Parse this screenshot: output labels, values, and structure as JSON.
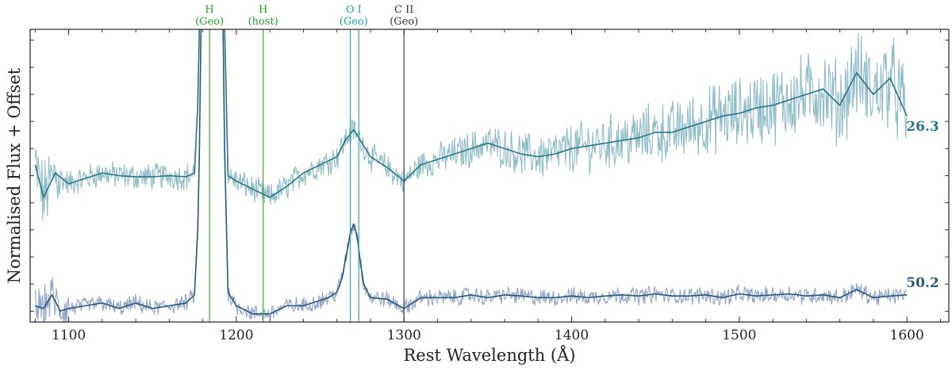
{
  "chart_data": {
    "type": "line",
    "title": "",
    "xlabel": "Rest Wavelength (Å)",
    "ylabel": "Normalised Flux + Offset",
    "xlim": [
      1077,
      1625
    ],
    "ylim": [
      -0.2,
      5.2
    ],
    "xticks": [
      1100,
      1200,
      1300,
      1400,
      1500,
      1600
    ],
    "grid": false,
    "colors": {
      "upper_raw": "#8fbcc7",
      "upper_smooth": "#2a7587",
      "lower_raw": "#93a5c8",
      "lower_smooth": "#2a577a",
      "green": "#2ca02c",
      "teal": "#1ca5a5",
      "black": "#333333"
    },
    "series": [
      {
        "name": "26.3",
        "label_color": "#2a7587",
        "offset": 1.8,
        "smooth": {
          "x": [
            1080,
            1085,
            1092,
            1100,
            1110,
            1120,
            1130,
            1140,
            1150,
            1160,
            1170,
            1175,
            1177,
            1178,
            1179,
            1180,
            1181,
            1182,
            1183,
            1185,
            1188,
            1190,
            1191,
            1192,
            1193,
            1195,
            1200,
            1210,
            1220,
            1230,
            1240,
            1250,
            1260,
            1265,
            1270,
            1275,
            1280,
            1290,
            1300,
            1310,
            1320,
            1330,
            1340,
            1350,
            1360,
            1370,
            1380,
            1390,
            1400,
            1410,
            1420,
            1430,
            1440,
            1450,
            1460,
            1470,
            1480,
            1490,
            1500,
            1510,
            1520,
            1530,
            1540,
            1550,
            1560,
            1570,
            1580,
            1590,
            1600
          ],
          "y": [
            0.9,
            0.3,
            0.75,
            0.55,
            0.65,
            0.75,
            0.7,
            0.68,
            0.68,
            0.7,
            0.68,
            0.75,
            2.0,
            3.5,
            5.4,
            5.4,
            5.4,
            5.4,
            5.4,
            5.4,
            5.4,
            5.4,
            5.4,
            5.4,
            3.5,
            0.7,
            0.6,
            0.45,
            0.3,
            0.5,
            0.75,
            0.9,
            1.05,
            1.35,
            1.55,
            1.3,
            1.05,
            0.85,
            0.6,
            0.9,
            1.0,
            1.1,
            1.2,
            1.3,
            1.2,
            1.1,
            1.05,
            1.1,
            1.2,
            1.25,
            1.3,
            1.35,
            1.4,
            1.5,
            1.5,
            1.6,
            1.7,
            1.8,
            1.85,
            1.95,
            2.0,
            2.1,
            2.2,
            2.3,
            2.0,
            2.6,
            2.2,
            2.5,
            1.8
          ]
        }
      },
      {
        "name": "50.2",
        "label_color": "#2a577a",
        "offset": 0,
        "smooth": {
          "x": [
            1080,
            1085,
            1090,
            1095,
            1100,
            1110,
            1120,
            1130,
            1140,
            1150,
            1160,
            1170,
            1175,
            1177,
            1178,
            1179,
            1180,
            1181,
            1182,
            1183,
            1185,
            1188,
            1190,
            1191,
            1192,
            1193,
            1195,
            1200,
            1210,
            1220,
            1230,
            1240,
            1250,
            1255,
            1260,
            1263,
            1266,
            1268,
            1270,
            1272,
            1274,
            1276,
            1280,
            1290,
            1300,
            1310,
            1320,
            1330,
            1340,
            1350,
            1360,
            1370,
            1380,
            1390,
            1400,
            1410,
            1420,
            1430,
            1440,
            1450,
            1460,
            1470,
            1480,
            1490,
            1500,
            1510,
            1520,
            1530,
            1540,
            1550,
            1560,
            1570,
            1580,
            1590,
            1600
          ],
          "y": [
            0.1,
            0.05,
            0.3,
            0.0,
            0.05,
            0.1,
            0.15,
            0.05,
            0.15,
            0.05,
            0.1,
            0.15,
            0.3,
            1.5,
            3.0,
            5.4,
            5.4,
            5.4,
            5.4,
            5.4,
            5.4,
            5.4,
            5.4,
            5.4,
            5.4,
            3.0,
            0.35,
            0.1,
            -0.05,
            -0.05,
            0.1,
            0.1,
            0.2,
            0.25,
            0.35,
            0.6,
            1.1,
            1.45,
            1.6,
            1.4,
            0.9,
            0.5,
            0.25,
            0.22,
            0.05,
            0.25,
            0.25,
            0.25,
            0.3,
            0.25,
            0.3,
            0.28,
            0.25,
            0.25,
            0.28,
            0.25,
            0.28,
            0.3,
            0.28,
            0.32,
            0.28,
            0.28,
            0.3,
            0.25,
            0.32,
            0.28,
            0.3,
            0.32,
            0.28,
            0.3,
            0.25,
            0.4,
            0.25,
            0.28,
            0.3
          ]
        }
      }
    ],
    "vertical_lines": [
      {
        "x": 1184,
        "label_line1": "",
        "label_line2": "",
        "color_key": "green"
      },
      {
        "x": 1216,
        "label_line1": "",
        "label_line2": "",
        "color_key": "green"
      },
      {
        "x": 1268,
        "label_line1": "",
        "label_line2": "",
        "color_key": "teal"
      },
      {
        "x": 1273,
        "label_line1": "",
        "label_line2": "",
        "color_key": "teal"
      },
      {
        "x": 1300,
        "label_line1": "",
        "label_line2": "",
        "color_key": "black"
      }
    ],
    "line_labels": [
      {
        "x": 1184,
        "line1": "H",
        "line2": "(Geo)",
        "color_key": "green"
      },
      {
        "x": 1216,
        "line1": "H",
        "line2": "(host)",
        "color_key": "green"
      },
      {
        "x": 1270,
        "line1": "O I",
        "line2": "(Geo)",
        "color_key": "teal"
      },
      {
        "x": 1300,
        "line1": "C II",
        "line2": "(Geo)",
        "color_key": "black"
      }
    ]
  }
}
